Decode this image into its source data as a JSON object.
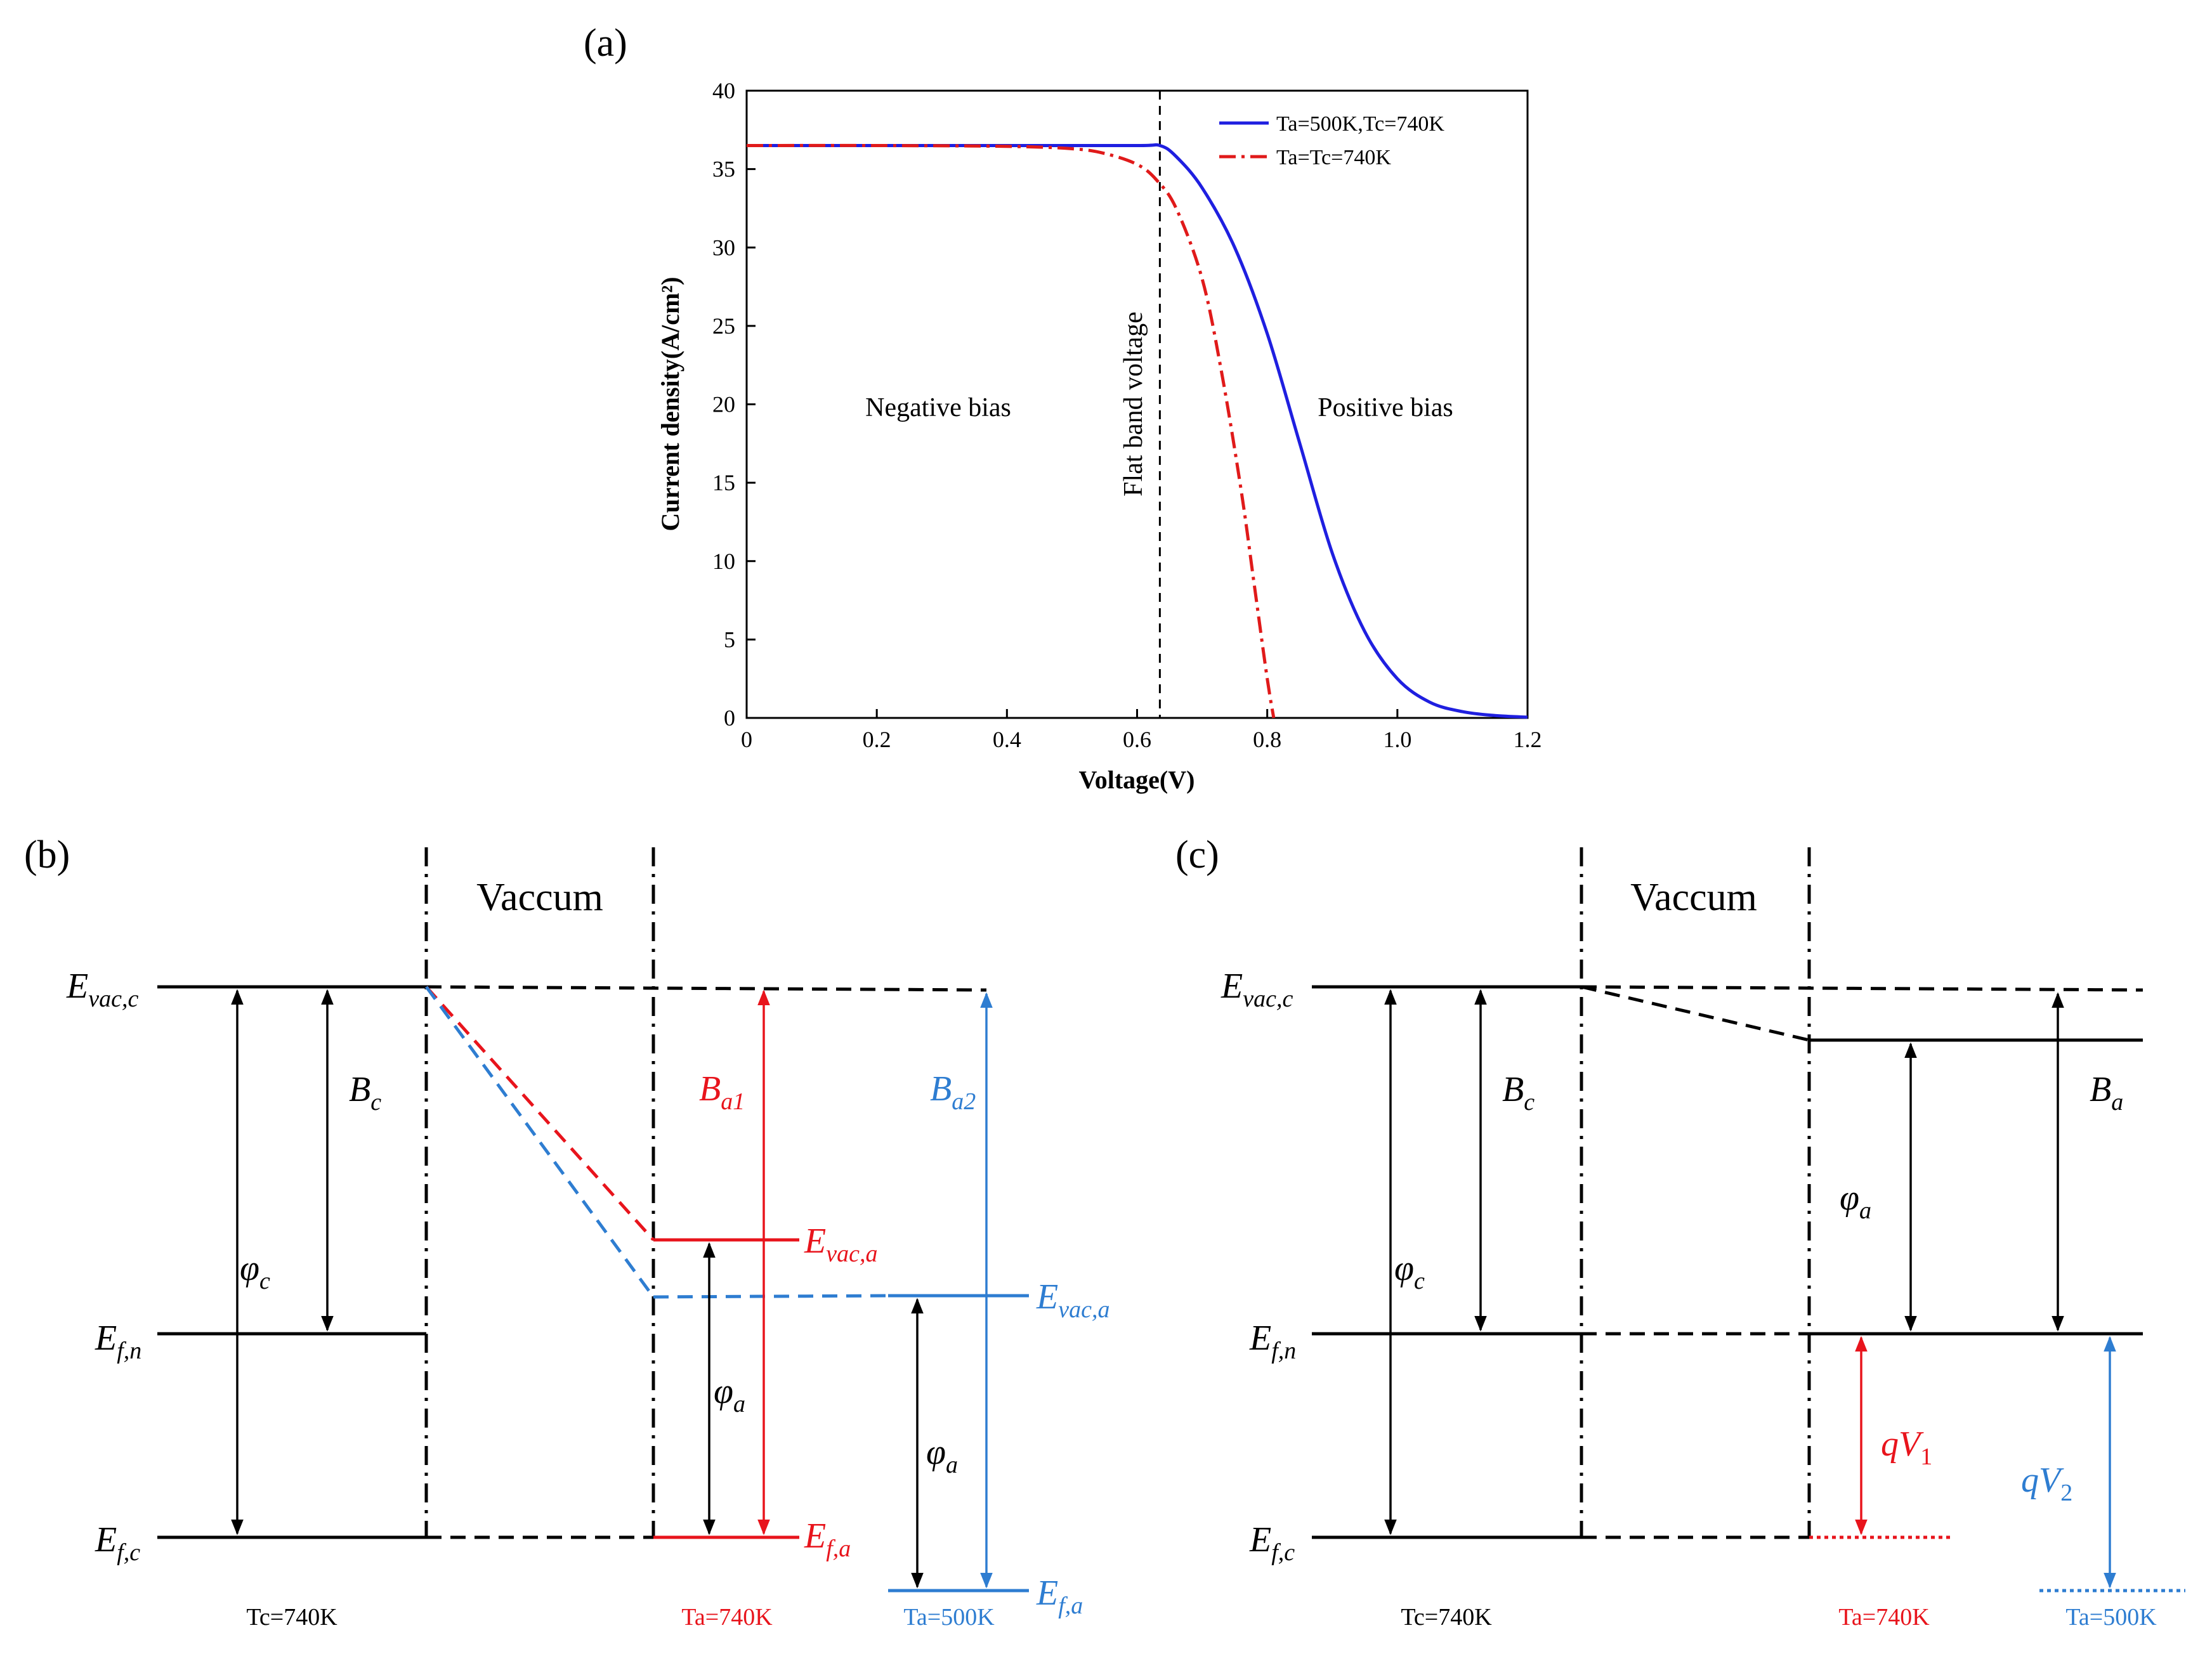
{
  "panels": {
    "a": "(a)",
    "b": "(b)",
    "c": "(c)"
  },
  "chart_data": {
    "type": "line",
    "title": "",
    "xlabel": "Voltage(V)",
    "ylabel": "Current density(A/cm²)",
    "xlim": [
      0,
      1.2
    ],
    "ylim": [
      0,
      40
    ],
    "x_ticks": [
      "0",
      "0.2",
      "0.4",
      "0.6",
      "0.8",
      "1.0",
      "1.2"
    ],
    "y_ticks": [
      "0",
      "5",
      "10",
      "15",
      "20",
      "25",
      "30",
      "35",
      "40"
    ],
    "legend_position": "top-right",
    "series": [
      {
        "name": "Ta=500K,Tc=740K",
        "style": "solid",
        "color": "#1f1fe0",
        "x": [
          0,
          0.2,
          0.4,
          0.6,
          0.635,
          0.66,
          0.7,
          0.75,
          0.8,
          0.85,
          0.9,
          0.95,
          1.0,
          1.05,
          1.1,
          1.15,
          1.2
        ],
        "y": [
          36.5,
          36.5,
          36.5,
          36.5,
          36.5,
          35.8,
          33.8,
          30.0,
          24.5,
          17.5,
          10.5,
          5.5,
          2.5,
          1.0,
          0.4,
          0.15,
          0.05
        ]
      },
      {
        "name": "Ta=Tc=740K",
        "style": "dashdot",
        "color": "#e01a1a",
        "x": [
          0,
          0.2,
          0.4,
          0.5,
          0.55,
          0.6,
          0.63,
          0.66,
          0.7,
          0.73,
          0.76,
          0.78,
          0.8,
          0.81
        ],
        "y": [
          36.5,
          36.5,
          36.45,
          36.3,
          36.0,
          35.3,
          34.3,
          32.5,
          28.0,
          22.0,
          14.5,
          8.5,
          2.5,
          0
        ]
      }
    ],
    "annotations": {
      "flat_band_voltage_x": 0.635,
      "flat_band_label": "Flat band voltage",
      "negative_bias": "Negative bias",
      "positive_bias": "Positive bias"
    }
  },
  "diagram_b": {
    "vacuum": "Vaccum",
    "left_levels": {
      "evac_main": "E",
      "evac_sub": "vac,c",
      "efn_main": "E",
      "efn_sub": "f,n",
      "efc_main": "E",
      "efc_sub": "f,c"
    },
    "bc_main": "B",
    "bc_sub": "c",
    "phic_main": "φ",
    "phic_sub": "c",
    "ba1_main": "B",
    "ba1_sub": "a1",
    "ba2_main": "B",
    "ba2_sub": "a2",
    "evaca_red_main": "E",
    "evaca_red_sub": "vac,a",
    "evaca_blue_main": "E",
    "evaca_blue_sub": "vac,a",
    "efa_red_main": "E",
    "efa_red_sub": "f,a",
    "efa_blue_main": "E",
    "efa_blue_sub": "f,a",
    "phia1_main": "φ",
    "phia1_sub": "a",
    "phia2_main": "φ",
    "phia2_sub": "a",
    "tc": "Tc=740K",
    "ta_red": "Ta=740K",
    "ta_blue": "Ta=500K",
    "colors": {
      "red": "#e8141c",
      "blue": "#2e7dd1",
      "black": "#000000"
    }
  },
  "diagram_c": {
    "vacuum": "Vaccum",
    "left_levels": {
      "evac_main": "E",
      "evac_sub": "vac,c",
      "efn_main": "E",
      "efn_sub": "f,n",
      "efc_main": "E",
      "efc_sub": "f,c"
    },
    "bc_main": "B",
    "bc_sub": "c",
    "phic_main": "φ",
    "phic_sub": "c",
    "ba_main": "B",
    "ba_sub": "a",
    "phia_main": "φ",
    "phia_sub": "a",
    "qv1_main": "qV",
    "qv1_sub": "1",
    "qv2_main": "qV",
    "qv2_sub": "2",
    "tc": "Tc=740K",
    "ta_red": "Ta=740K",
    "ta_blue": "Ta=500K"
  }
}
